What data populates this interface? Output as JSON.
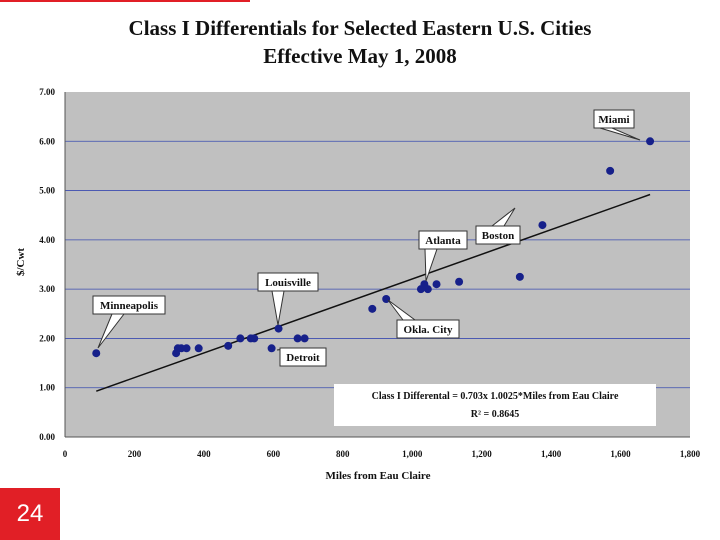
{
  "chart_data": {
    "type": "scatter",
    "title": "Class I Differentials for Selected Eastern U.S. Cities",
    "subtitle": "Effective May 1, 2008",
    "xlabel": "Miles from Eau Claire",
    "ylabel": "$/Cwt",
    "xlim": [
      0,
      1800
    ],
    "ylim": [
      0,
      7
    ],
    "xticks": [
      "0",
      "200",
      "400",
      "600",
      "800",
      "1,000",
      "1,200",
      "1,400",
      "1,600",
      "1,800"
    ],
    "yticks": [
      "0.00",
      "1.00",
      "2.00",
      "3.00",
      "4.00",
      "5.00",
      "6.00",
      "7.00"
    ],
    "points": [
      {
        "x": 90,
        "y": 1.7
      },
      {
        "x": 320,
        "y": 1.7
      },
      {
        "x": 325,
        "y": 1.8
      },
      {
        "x": 335,
        "y": 1.8
      },
      {
        "x": 350,
        "y": 1.8
      },
      {
        "x": 385,
        "y": 1.8
      },
      {
        "x": 470,
        "y": 1.85
      },
      {
        "x": 505,
        "y": 2.0
      },
      {
        "x": 535,
        "y": 2.0
      },
      {
        "x": 545,
        "y": 2.0
      },
      {
        "x": 595,
        "y": 1.8
      },
      {
        "x": 615,
        "y": 2.2
      },
      {
        "x": 670,
        "y": 2.0
      },
      {
        "x": 690,
        "y": 2.0
      },
      {
        "x": 885,
        "y": 2.6
      },
      {
        "x": 925,
        "y": 2.8
      },
      {
        "x": 1025,
        "y": 3.0
      },
      {
        "x": 1035,
        "y": 3.1
      },
      {
        "x": 1045,
        "y": 3.0
      },
      {
        "x": 1070,
        "y": 3.1
      },
      {
        "x": 1135,
        "y": 3.15
      },
      {
        "x": 1310,
        "y": 3.25
      },
      {
        "x": 1375,
        "y": 4.3
      },
      {
        "x": 1570,
        "y": 5.4
      },
      {
        "x": 1685,
        "y": 6.0
      }
    ],
    "trendline": {
      "x": [
        90,
        1685
      ],
      "y": [
        0.93,
        4.92
      ]
    },
    "callouts": [
      {
        "label": "Miami",
        "x": 1685,
        "y": 6.0
      },
      {
        "label": "Boston",
        "x": 1375,
        "y": 4.3
      },
      {
        "label": "Atlanta",
        "x": 1035,
        "y": 3.1
      },
      {
        "label": "Louisville",
        "x": 615,
        "y": 2.2
      },
      {
        "label": "Minneapolis",
        "x": 90,
        "y": 1.7
      },
      {
        "label": "Okla. City",
        "x": 925,
        "y": 2.8
      },
      {
        "label": "Detroit",
        "x": 595,
        "y": 1.8
      }
    ],
    "equation": "Class I Differental = 0.703x 1.0025*Miles from Eau Claire",
    "r_squared": "R² = 0.8645"
  },
  "slide_number": "24",
  "colors": {
    "plot_bg": "#c0c0c0",
    "gridline": "#3b4cb0",
    "point": "#16208a",
    "accent": "#e11f26"
  }
}
